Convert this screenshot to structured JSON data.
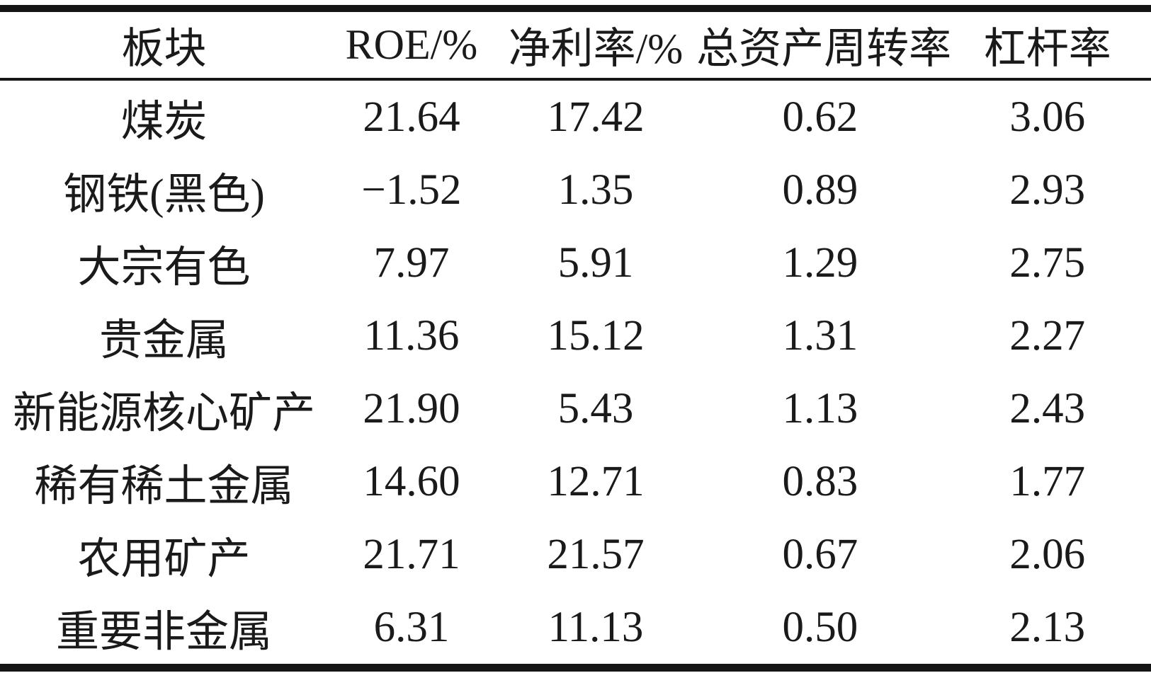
{
  "table": {
    "columns": [
      "板块",
      "ROE/%",
      "净利率/%",
      "总资产周转率",
      "杠杆率"
    ],
    "rows": [
      [
        "煤炭",
        "21.64",
        "17.42",
        "0.62",
        "3.06"
      ],
      [
        "钢铁(黑色)",
        "−1.52",
        "1.35",
        "0.89",
        "2.93"
      ],
      [
        "大宗有色",
        "7.97",
        "5.91",
        "1.29",
        "2.75"
      ],
      [
        "贵金属",
        "11.36",
        "15.12",
        "1.31",
        "2.27"
      ],
      [
        "新能源核心矿产",
        "21.90",
        "5.43",
        "1.13",
        "2.43"
      ],
      [
        "稀有稀土金属",
        "14.60",
        "12.71",
        "0.83",
        "1.77"
      ],
      [
        "农用矿产",
        "21.71",
        "21.57",
        "0.67",
        "2.06"
      ],
      [
        "重要非金属",
        "6.31",
        "11.13",
        "0.50",
        "2.13"
      ]
    ]
  },
  "colors": {
    "text": "#1a1a1a",
    "rule": "#151515",
    "background": "#ffffff"
  },
  "chart_data": {
    "type": "table",
    "title": "",
    "columns": [
      "板块",
      "ROE/%",
      "净利率/%",
      "总资产周转率",
      "杠杆率"
    ],
    "rows": [
      {
        "板块": "煤炭",
        "ROE": 21.64,
        "净利率": 17.42,
        "总资产周转率": 0.62,
        "杠杆率": 3.06
      },
      {
        "板块": "钢铁(黑色)",
        "ROE": -1.52,
        "净利率": 1.35,
        "总资产周转率": 0.89,
        "杠杆率": 2.93
      },
      {
        "板块": "大宗有色",
        "ROE": 7.97,
        "净利率": 5.91,
        "总资产周转率": 1.29,
        "杠杆率": 2.75
      },
      {
        "板块": "贵金属",
        "ROE": 11.36,
        "净利率": 15.12,
        "总资产周转率": 1.31,
        "杠杆率": 2.27
      },
      {
        "板块": "新能源核心矿产",
        "ROE": 21.9,
        "净利率": 5.43,
        "总资产周转率": 1.13,
        "杠杆率": 2.43
      },
      {
        "板块": "稀有稀土金属",
        "ROE": 14.6,
        "净利率": 12.71,
        "总资产周转率": 0.83,
        "杠杆率": 1.77
      },
      {
        "板块": "农用矿产",
        "ROE": 21.71,
        "净利率": 21.57,
        "总资产周转率": 0.67,
        "杠杆率": 2.06
      },
      {
        "板块": "重要非金属",
        "ROE": 6.31,
        "净利率": 11.13,
        "总资产周转率": 0.5,
        "杠杆率": 2.13
      }
    ]
  }
}
